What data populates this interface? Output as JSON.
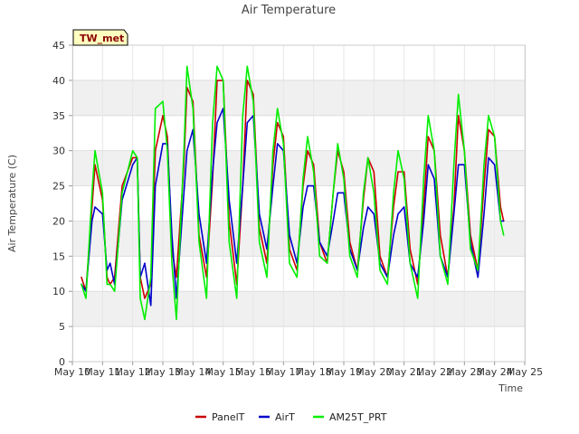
{
  "chart_data": {
    "type": "line",
    "title": "Air Temperature",
    "xlabel": "Time",
    "ylabel": "Air Temperature (C)",
    "site_tag": "TW_met",
    "xlim": [
      10,
      25
    ],
    "ylim": [
      0,
      45
    ],
    "x_ticks": [
      10,
      11,
      12,
      13,
      14,
      15,
      16,
      17,
      18,
      19,
      20,
      21,
      22,
      23,
      24,
      25
    ],
    "x_tick_labels": [
      "May 10",
      "May 11",
      "May 12",
      "May 13",
      "May 14",
      "May 15",
      "May 16",
      "May 17",
      "May 18",
      "May 19",
      "May 20",
      "May 21",
      "May 22",
      "May 23",
      "May 24",
      "May 25"
    ],
    "y_ticks": [
      0,
      5,
      10,
      15,
      20,
      25,
      30,
      35,
      40,
      45
    ],
    "y_tick_labels": [
      "0",
      "5",
      "10",
      "15",
      "20",
      "25",
      "30",
      "35",
      "40",
      "45"
    ],
    "grid": true,
    "legend_position": "bottom",
    "series": [
      {
        "name": "PanelT",
        "color": "#cc0000",
        "x": [
          10.3,
          10.45,
          10.65,
          10.75,
          11.0,
          11.15,
          11.25,
          11.4,
          11.65,
          12.0,
          12.15,
          12.25,
          12.4,
          12.6,
          12.75,
          13.0,
          13.15,
          13.3,
          13.45,
          13.7,
          13.8,
          14.0,
          14.2,
          14.45,
          14.65,
          14.8,
          15.0,
          15.2,
          15.45,
          15.65,
          15.8,
          16.0,
          16.2,
          16.45,
          16.65,
          16.8,
          17.0,
          17.2,
          17.45,
          17.65,
          17.8,
          18.0,
          18.2,
          18.45,
          18.65,
          18.8,
          19.0,
          19.2,
          19.45,
          19.65,
          19.8,
          20.0,
          20.2,
          20.45,
          20.65,
          20.8,
          21.0,
          21.2,
          21.45,
          21.65,
          21.8,
          22.0,
          22.2,
          22.45,
          22.65,
          22.8,
          23.0,
          23.2,
          23.45,
          23.65,
          23.8,
          24.0,
          24.2,
          24.3
        ],
        "y": [
          12,
          10,
          22,
          28,
          23,
          12,
          11,
          12,
          25,
          29,
          29,
          12,
          9,
          11,
          30,
          35,
          32,
          16,
          12,
          28,
          39,
          37,
          18,
          12,
          26,
          40,
          40,
          20,
          11,
          25,
          40,
          38,
          19,
          14,
          28,
          34,
          32,
          16,
          13,
          25,
          30,
          28,
          17,
          14,
          24,
          30,
          27,
          17,
          13,
          23,
          29,
          27,
          15,
          12,
          22,
          27,
          27,
          16,
          11,
          22,
          32,
          30,
          18,
          12,
          22,
          35,
          30,
          18,
          13,
          25,
          33,
          32,
          22,
          20
        ]
      },
      {
        "name": "AirT",
        "color": "#0000cc",
        "x": [
          10.3,
          10.45,
          10.65,
          10.75,
          11.0,
          11.15,
          11.25,
          11.4,
          11.65,
          12.0,
          12.15,
          12.25,
          12.4,
          12.6,
          12.75,
          13.0,
          13.15,
          13.3,
          13.45,
          13.7,
          13.8,
          14.0,
          14.2,
          14.45,
          14.65,
          14.8,
          15.0,
          15.2,
          15.45,
          15.65,
          15.8,
          16.0,
          16.2,
          16.45,
          16.65,
          16.8,
          17.0,
          17.2,
          17.45,
          17.65,
          17.8,
          18.0,
          18.2,
          18.45,
          18.65,
          18.8,
          19.0,
          19.2,
          19.45,
          19.65,
          19.8,
          20.0,
          20.2,
          20.45,
          20.65,
          20.8,
          21.0,
          21.2,
          21.45,
          21.65,
          21.8,
          22.0,
          22.2,
          22.45,
          22.65,
          22.8,
          23.0,
          23.2,
          23.45,
          23.65,
          23.8,
          24.0,
          24.2,
          24.3
        ],
        "y": [
          11,
          10,
          20,
          22,
          21,
          13,
          14,
          11,
          23,
          28,
          29,
          12,
          14,
          8,
          25,
          31,
          31,
          18,
          9,
          24,
          30,
          33,
          21,
          14,
          27,
          34,
          36,
          23,
          14,
          25,
          34,
          35,
          21,
          16,
          25,
          31,
          30,
          18,
          14,
          22,
          25,
          25,
          17,
          15,
          20,
          24,
          24,
          16,
          13,
          19,
          22,
          21,
          14,
          12,
          18,
          21,
          22,
          14,
          12,
          20,
          28,
          26,
          15,
          12,
          21,
          28,
          28,
          17,
          12,
          21,
          29,
          28,
          20,
          20
        ]
      },
      {
        "name": "AM25T_PRT",
        "color": "#00ee00",
        "x": [
          10.3,
          10.45,
          10.65,
          10.75,
          11.0,
          11.15,
          11.25,
          11.4,
          11.65,
          12.0,
          12.15,
          12.25,
          12.4,
          12.6,
          12.75,
          13.0,
          13.15,
          13.3,
          13.45,
          13.7,
          13.8,
          14.0,
          14.2,
          14.45,
          14.65,
          14.8,
          15.0,
          15.2,
          15.45,
          15.65,
          15.8,
          16.0,
          16.2,
          16.45,
          16.65,
          16.8,
          17.0,
          17.2,
          17.45,
          17.65,
          17.8,
          18.0,
          18.2,
          18.45,
          18.65,
          18.8,
          19.0,
          19.2,
          19.45,
          19.65,
          19.8,
          20.0,
          20.2,
          20.45,
          20.65,
          20.8,
          21.0,
          21.2,
          21.45,
          21.65,
          21.8,
          22.0,
          22.2,
          22.45,
          22.65,
          22.8,
          23.0,
          23.2,
          23.45,
          23.65,
          23.8,
          24.0,
          24.2,
          24.3
        ],
        "y": [
          11,
          9,
          24,
          30,
          24,
          11,
          11,
          10,
          24,
          30,
          29,
          9,
          6,
          12,
          36,
          37,
          30,
          14,
          6,
          30,
          42,
          36,
          17,
          9,
          34,
          42,
          40,
          17,
          9,
          35,
          42,
          37,
          17,
          12,
          30,
          36,
          31,
          14,
          12,
          26,
          32,
          27,
          15,
          14,
          24,
          31,
          26,
          15,
          12,
          24,
          29,
          24,
          13,
          11,
          24,
          30,
          26,
          14,
          9,
          26,
          35,
          30,
          15,
          11,
          28,
          38,
          30,
          16,
          13,
          28,
          35,
          32,
          20,
          18
        ]
      }
    ]
  }
}
